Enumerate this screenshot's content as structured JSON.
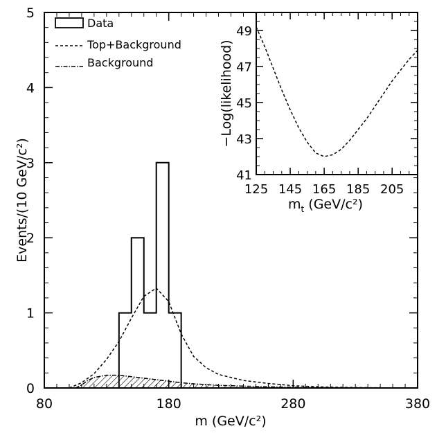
{
  "chart_data": [
    {
      "type": "histogram",
      "xlabel": "m (GeV/c²)",
      "ylabel": "Events/(10 GeV/c²)",
      "xlim": [
        80,
        380
      ],
      "ylim": [
        0,
        5
      ],
      "x_ticks": [
        "80",
        "180",
        "280",
        "380"
      ],
      "y_ticks": [
        "0",
        "1",
        "2",
        "3",
        "4",
        "5"
      ],
      "legend": {
        "position": "top-left",
        "entries": [
          {
            "label": "Data",
            "style": "solid"
          },
          {
            "label": "Top+Background",
            "style": "dashed"
          },
          {
            "label": "Background",
            "style": "dash-dot"
          }
        ]
      },
      "series": [
        {
          "name": "Data",
          "kind": "histogram",
          "bin_edges": [
            140,
            150,
            160,
            170,
            180,
            190
          ],
          "counts": [
            1,
            2,
            1,
            3,
            1
          ]
        },
        {
          "name": "Top+Background",
          "kind": "curve",
          "x": [
            100,
            110,
            120,
            130,
            140,
            150,
            160,
            170,
            180,
            190,
            200,
            210,
            220,
            240,
            260,
            280,
            300,
            320,
            340,
            360,
            380
          ],
          "y": [
            0.0,
            0.07,
            0.19,
            0.38,
            0.62,
            0.93,
            1.22,
            1.33,
            1.15,
            0.72,
            0.42,
            0.27,
            0.18,
            0.1,
            0.06,
            0.03,
            0.015,
            0.008,
            0.004,
            0.002,
            0.0
          ]
        },
        {
          "name": "Background",
          "kind": "curve",
          "filled": true,
          "hatched": true,
          "x": [
            105,
            110,
            115,
            120,
            130,
            140,
            150,
            160,
            170,
            180,
            190,
            200,
            220,
            240,
            260,
            280,
            300,
            320,
            340
          ],
          "y": [
            0.0,
            0.04,
            0.1,
            0.14,
            0.17,
            0.17,
            0.15,
            0.13,
            0.11,
            0.09,
            0.07,
            0.055,
            0.035,
            0.025,
            0.015,
            0.01,
            0.005,
            0.002,
            0.0
          ]
        }
      ]
    },
    {
      "type": "line",
      "xlabel": "m",
      "xlabel_sub": "t",
      "xlabel_unit": "(GeV/c²)",
      "ylabel": "−Log(likelihood)",
      "xlim": [
        125,
        220
      ],
      "ylim": [
        41,
        50
      ],
      "x_ticks": [
        "125",
        "145",
        "165",
        "185",
        "205"
      ],
      "y_ticks": [
        "41",
        "43",
        "45",
        "47",
        "49"
      ],
      "series": [
        {
          "name": "−Log(likelihood)",
          "style": "dashed",
          "x": [
            125,
            130,
            135,
            140,
            145,
            150,
            155,
            160,
            165,
            170,
            175,
            180,
            185,
            190,
            195,
            200,
            205,
            210,
            215,
            220
          ],
          "y": [
            49.2,
            48.1,
            46.9,
            45.7,
            44.6,
            43.6,
            42.8,
            42.2,
            42.0,
            42.1,
            42.4,
            42.9,
            43.5,
            44.1,
            44.8,
            45.5,
            46.2,
            46.8,
            47.4,
            47.9
          ]
        }
      ]
    }
  ]
}
